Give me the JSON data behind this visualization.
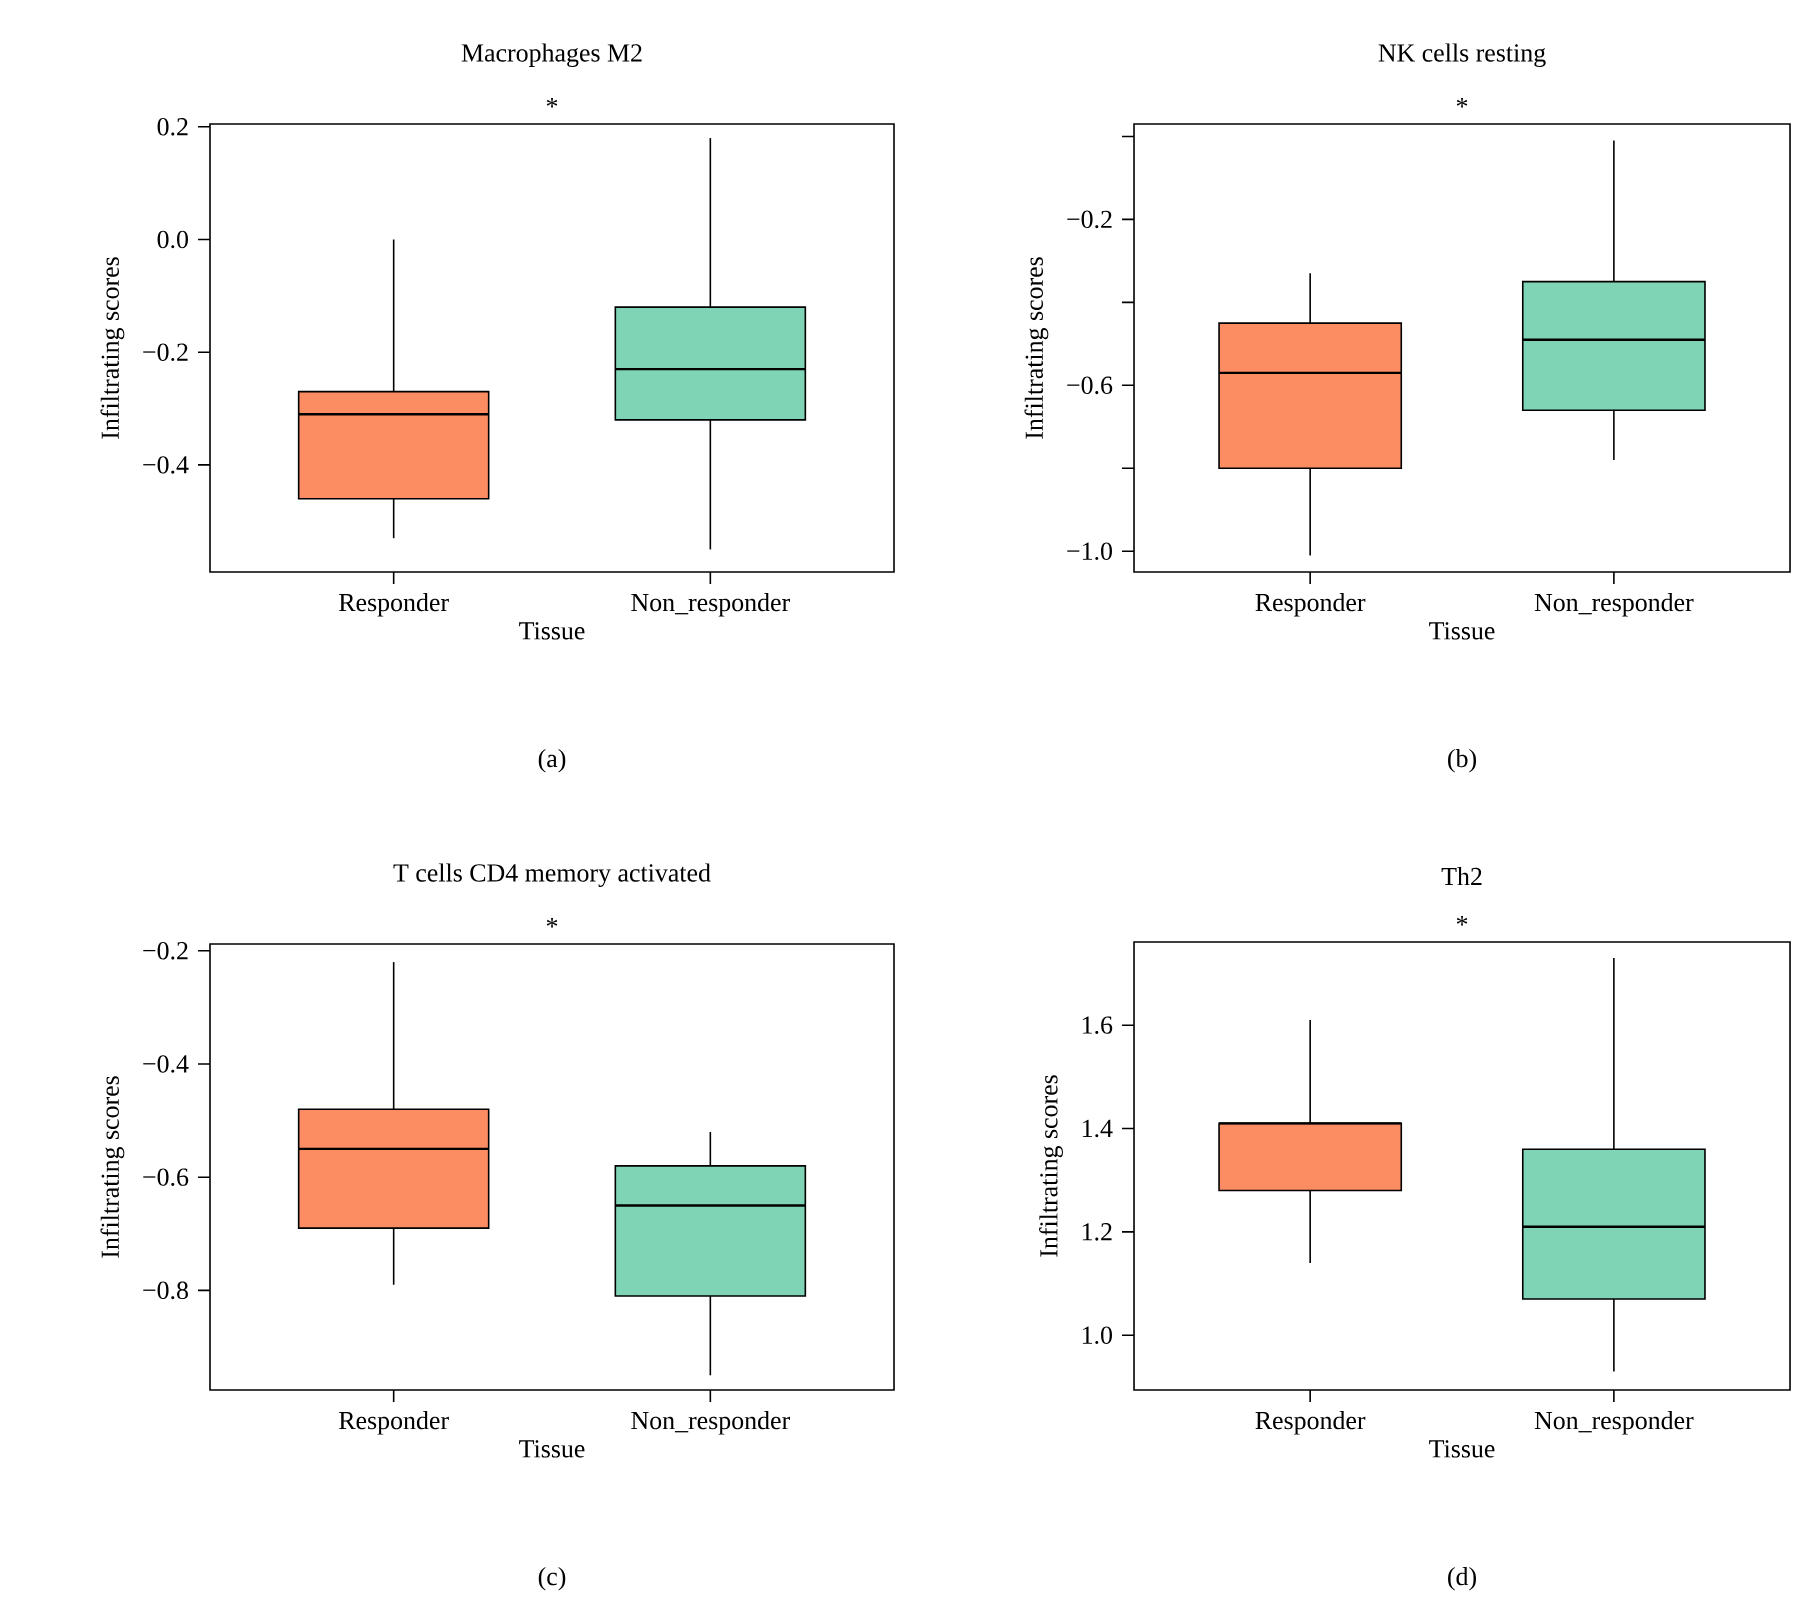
{
  "chart_data": [
    {
      "type": "box",
      "title": "Macrophages M2",
      "xlabel": "Tissue",
      "ylabel": "Infiltrating scores",
      "annotations": [
        "*",
        "(a)"
      ],
      "categories": [
        "Responder",
        "Non_responder"
      ],
      "colors": [
        "#fc8d62",
        "#7fd4b6"
      ],
      "boxes": [
        {
          "low": -0.53,
          "q1": -0.46,
          "median": -0.31,
          "q3": -0.27,
          "high": 0.0
        },
        {
          "low": -0.55,
          "q1": -0.32,
          "median": -0.23,
          "q3": -0.12,
          "high": 0.18
        }
      ],
      "ylim": [
        -0.59,
        0.205
      ],
      "yticks": [
        {
          "value": -0.4,
          "label": "−0.4"
        },
        {
          "value": -0.2,
          "label": "−0.2"
        },
        {
          "value": 0.0,
          "label": "0.0"
        },
        {
          "value": 0.2,
          "label": "0.2"
        }
      ]
    },
    {
      "type": "box",
      "title": "NK cells resting",
      "xlabel": "Tissue",
      "ylabel": "Infiltrating scores",
      "annotations": [
        "*",
        "(b)"
      ],
      "categories": [
        "Responder",
        "Non_responder"
      ],
      "colors": [
        "#fc8d62",
        "#7fd4b6"
      ],
      "boxes": [
        {
          "low": -1.01,
          "q1": -0.8,
          "median": -0.57,
          "q3": -0.45,
          "high": -0.33
        },
        {
          "low": -0.78,
          "q1": -0.66,
          "median": -0.49,
          "q3": -0.35,
          "high": -0.01
        }
      ],
      "ylim": [
        -1.05,
        0.03
      ],
      "yticks": [
        {
          "value": -1.0,
          "label": "−1.0"
        },
        {
          "value": -0.8,
          "label": null
        },
        {
          "value": -0.6,
          "label": "−0.6"
        },
        {
          "value": -0.4,
          "label": null
        },
        {
          "value": -0.2,
          "label": "−0.2"
        },
        {
          "value": 0.0,
          "label": null
        }
      ]
    },
    {
      "type": "box",
      "title": "T cells CD4 memory activated",
      "xlabel": "Tissue",
      "ylabel": "Infiltrating scores",
      "annotations": [
        "*",
        "(c)"
      ],
      "categories": [
        "Responder",
        "Non_responder"
      ],
      "colors": [
        "#fc8d62",
        "#7fd4b6"
      ],
      "boxes": [
        {
          "low": -0.79,
          "q1": -0.69,
          "median": -0.55,
          "q3": -0.48,
          "high": -0.22
        },
        {
          "low": -0.95,
          "q1": -0.81,
          "median": -0.65,
          "q3": -0.58,
          "high": -0.52
        }
      ],
      "ylim": [
        -0.976,
        -0.188
      ],
      "yticks": [
        {
          "value": -0.8,
          "label": "−0.8"
        },
        {
          "value": -0.6,
          "label": "−0.6"
        },
        {
          "value": -0.4,
          "label": "−0.4"
        },
        {
          "value": -0.2,
          "label": "−0.2"
        }
      ]
    },
    {
      "type": "box",
      "title": "Th2",
      "xlabel": "Tissue",
      "ylabel": "Infiltrating scores",
      "annotations": [
        "*",
        "(d)"
      ],
      "categories": [
        "Responder",
        "Non_responder"
      ],
      "colors": [
        "#fc8d62",
        "#7fd4b6"
      ],
      "boxes": [
        {
          "low": 1.14,
          "q1": 1.28,
          "median": 1.41,
          "q3": 1.41,
          "high": 1.61
        },
        {
          "low": 0.93,
          "q1": 1.07,
          "median": 1.21,
          "q3": 1.36,
          "high": 1.73
        }
      ],
      "ylim": [
        0.894,
        1.761
      ],
      "yticks": [
        {
          "value": 1.0,
          "label": "1.0"
        },
        {
          "value": 1.2,
          "label": "1.2"
        },
        {
          "value": 1.4,
          "label": "1.4"
        },
        {
          "value": 1.6,
          "label": "1.6"
        }
      ]
    }
  ]
}
